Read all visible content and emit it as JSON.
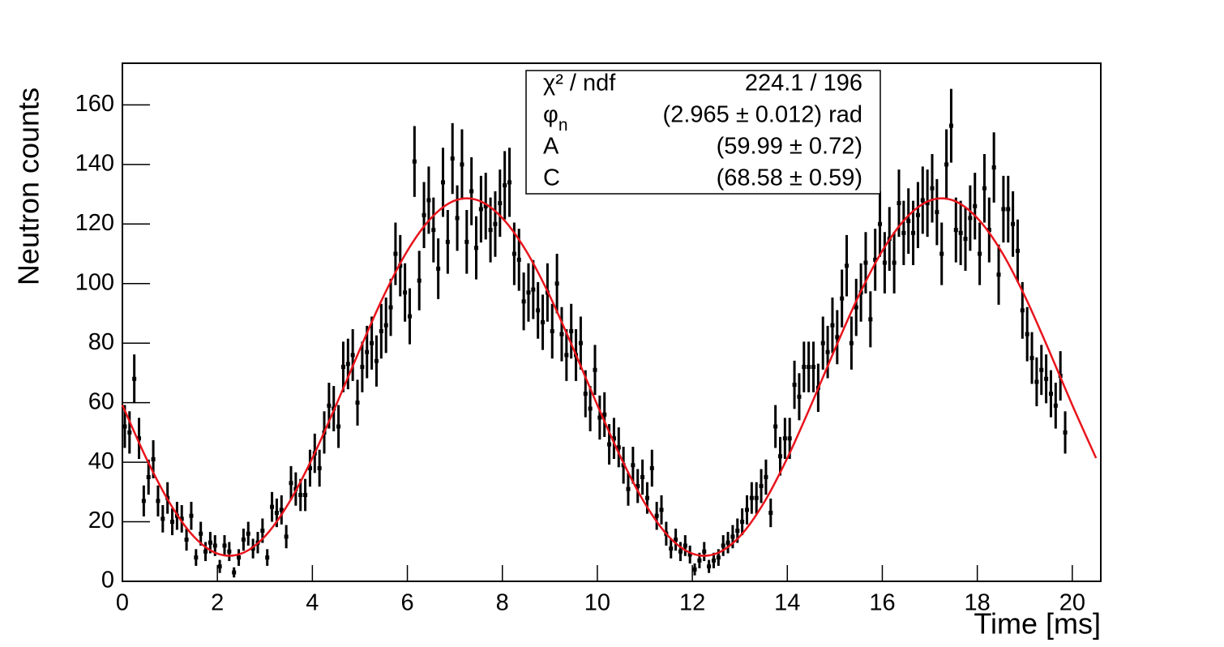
{
  "chart_data": {
    "type": "scatter",
    "xlabel": "Time [ms]",
    "ylabel": "Neutron counts",
    "xlim": [
      0,
      20.6
    ],
    "ylim": [
      0,
      174
    ],
    "xticks": [
      0,
      2,
      4,
      6,
      8,
      10,
      12,
      14,
      16,
      18,
      20
    ],
    "yticks": [
      0,
      20,
      40,
      60,
      80,
      100,
      120,
      140,
      160
    ],
    "color": "#000000",
    "x": [
      0.05,
      0.15,
      0.25,
      0.35,
      0.45,
      0.55,
      0.65,
      0.75,
      0.85,
      0.95,
      1.05,
      1.15,
      1.25,
      1.35,
      1.45,
      1.55,
      1.65,
      1.75,
      1.85,
      1.95,
      2.05,
      2.15,
      2.25,
      2.35,
      2.45,
      2.55,
      2.65,
      2.75,
      2.85,
      2.95,
      3.05,
      3.15,
      3.25,
      3.35,
      3.45,
      3.55,
      3.65,
      3.75,
      3.85,
      3.95,
      4.05,
      4.15,
      4.25,
      4.35,
      4.45,
      4.55,
      4.65,
      4.75,
      4.85,
      4.95,
      5.05,
      5.15,
      5.25,
      5.35,
      5.45,
      5.55,
      5.65,
      5.75,
      5.85,
      5.95,
      6.05,
      6.15,
      6.25,
      6.35,
      6.45,
      6.55,
      6.65,
      6.75,
      6.85,
      6.95,
      7.05,
      7.15,
      7.25,
      7.35,
      7.45,
      7.55,
      7.65,
      7.75,
      7.85,
      7.95,
      8.05,
      8.15,
      8.25,
      8.35,
      8.45,
      8.55,
      8.65,
      8.75,
      8.85,
      8.95,
      9.05,
      9.15,
      9.25,
      9.35,
      9.45,
      9.55,
      9.65,
      9.75,
      9.85,
      9.95,
      10.05,
      10.15,
      10.25,
      10.35,
      10.45,
      10.55,
      10.65,
      10.75,
      10.85,
      10.95,
      11.05,
      11.15,
      11.25,
      11.35,
      11.45,
      11.55,
      11.65,
      11.75,
      11.85,
      11.95,
      12.05,
      12.15,
      12.25,
      12.35,
      12.45,
      12.55,
      12.65,
      12.75,
      12.85,
      12.95,
      13.05,
      13.15,
      13.25,
      13.35,
      13.45,
      13.55,
      13.65,
      13.75,
      13.85,
      13.95,
      14.05,
      14.15,
      14.25,
      14.35,
      14.45,
      14.55,
      14.65,
      14.75,
      14.85,
      14.95,
      15.05,
      15.15,
      15.25,
      15.35,
      15.45,
      15.55,
      15.65,
      15.75,
      15.85,
      15.95,
      16.05,
      16.15,
      16.25,
      16.35,
      16.45,
      16.55,
      16.65,
      16.75,
      16.85,
      16.95,
      17.05,
      17.15,
      17.25,
      17.35,
      17.45,
      17.55,
      17.65,
      17.75,
      17.85,
      17.95,
      18.05,
      18.15,
      18.25,
      18.35,
      18.45,
      18.55,
      18.65,
      18.75,
      18.85,
      18.95,
      19.05,
      19.15,
      19.25,
      19.35,
      19.45,
      19.55,
      19.65,
      19.75,
      19.85
    ],
    "values": [
      52,
      50,
      68,
      48,
      27,
      35,
      41,
      27,
      21,
      28,
      20,
      22,
      21,
      14,
      22,
      8,
      16,
      10,
      13,
      12,
      5,
      12,
      10,
      3,
      8,
      14,
      16,
      11,
      13,
      17,
      8,
      25,
      23,
      24,
      15,
      33,
      31,
      29,
      29,
      38,
      43,
      38,
      50,
      59,
      58,
      52,
      72,
      73,
      76,
      60,
      72,
      77,
      80,
      74,
      84,
      86,
      92,
      110,
      106,
      97,
      89,
      141,
      101,
      123,
      128,
      118,
      105,
      134,
      114,
      142,
      122,
      140,
      114,
      131,
      112,
      125,
      126,
      118,
      120,
      127,
      133,
      134,
      110,
      108,
      94,
      97,
      98,
      91,
      87,
      97,
      84,
      100,
      83,
      76,
      84,
      76,
      80,
      63,
      58,
      71,
      55,
      56,
      46,
      48,
      45,
      39,
      31,
      39,
      32,
      35,
      28,
      38,
      22,
      24,
      16,
      11,
      14,
      10,
      12,
      9,
      4,
      7,
      10,
      5,
      7,
      8,
      12,
      13,
      15,
      17,
      20,
      24,
      28,
      28,
      32,
      35,
      23,
      52,
      42,
      48,
      48,
      66,
      62,
      72,
      72,
      72,
      65,
      80,
      77,
      86,
      82,
      95,
      106,
      80,
      92,
      97,
      107,
      88,
      108,
      120,
      107,
      115,
      107,
      127,
      117,
      121,
      117,
      123,
      128,
      127,
      132,
      124,
      110,
      140,
      153,
      118,
      117,
      115,
      122,
      126,
      110,
      132,
      118,
      139,
      103,
      125,
      125,
      120,
      111,
      91,
      83,
      75,
      67,
      71,
      68,
      63,
      59,
      69,
      50
    ],
    "errors": [
      7.2,
      7.1,
      8.2,
      6.9,
      5.2,
      5.9,
      6.4,
      5.2,
      4.6,
      5.3,
      4.5,
      4.7,
      4.6,
      3.7,
      4.7,
      2.8,
      4,
      3.2,
      3.6,
      3.5,
      2.2,
      3.5,
      3.2,
      1.7,
      2.8,
      3.7,
      4,
      3.3,
      3.6,
      4.1,
      2.8,
      5,
      4.8,
      4.9,
      3.9,
      5.7,
      5.6,
      5.4,
      5.4,
      6.2,
      6.6,
      6.2,
      7.1,
      7.7,
      7.6,
      7.2,
      8.5,
      8.5,
      8.7,
      7.7,
      8.5,
      8.8,
      8.9,
      8.6,
      9.2,
      9.3,
      9.6,
      10.5,
      10.3,
      9.8,
      9.4,
      11.9,
      10,
      11.1,
      11.3,
      10.9,
      10.2,
      11.6,
      10.7,
      11.9,
      11,
      11.8,
      10.7,
      11.4,
      10.6,
      11.2,
      11.2,
      10.9,
      11,
      11.3,
      11.5,
      11.6,
      10.5,
      10.4,
      9.7,
      9.8,
      9.9,
      9.5,
      9.3,
      9.8,
      9.2,
      10,
      9.1,
      8.7,
      9.2,
      8.7,
      8.9,
      7.9,
      7.6,
      8.4,
      7.4,
      7.5,
      6.8,
      6.9,
      6.7,
      6.2,
      5.6,
      6.2,
      5.7,
      5.9,
      5.3,
      6.2,
      4.7,
      4.9,
      4,
      3.3,
      3.7,
      3.2,
      3.5,
      3,
      2,
      2.6,
      3.2,
      2.2,
      2.6,
      2.8,
      3.5,
      3.6,
      3.9,
      4.1,
      4.5,
      4.9,
      5.3,
      5.3,
      5.7,
      5.9,
      4.8,
      7.2,
      6.5,
      6.9,
      6.9,
      8.1,
      7.9,
      8.5,
      8.5,
      8.5,
      8.1,
      8.9,
      8.8,
      9.3,
      9.1,
      9.7,
      10.3,
      8.9,
      9.6,
      9.8,
      10.3,
      9.4,
      10.4,
      11,
      10.3,
      10.7,
      10.3,
      11.3,
      10.8,
      11,
      10.8,
      11.1,
      11.3,
      11.3,
      11.5,
      11.1,
      10.5,
      11.8,
      12.4,
      10.9,
      10.8,
      10.7,
      11,
      11.2,
      10.5,
      11.5,
      10.9,
      11.8,
      10.1,
      11.2,
      11.2,
      11,
      10.5,
      9.5,
      9.1,
      8.7,
      8.2,
      8.4,
      8.2,
      7.9,
      7.7,
      8.3,
      7.1
    ],
    "fit": {
      "color": "#e8141c",
      "x": [
        0,
        0.5,
        1,
        1.5,
        2,
        2.5,
        3,
        3.5,
        4,
        4.5,
        5,
        5.5,
        6,
        6.5,
        7,
        7.5,
        8,
        8.5,
        9,
        9.5,
        10,
        10.5,
        11,
        11.5,
        12,
        12.5,
        13,
        13.5,
        14,
        14.5,
        15,
        15.5,
        16,
        16.5,
        17,
        17.5,
        18,
        18.5,
        19,
        19.5,
        20,
        20.5
      ],
      "y": [
        59.2,
        41.4,
        26.2,
        15.1,
        9.3,
        9.3,
        15.1,
        26.2,
        41.4,
        59.2,
        77.9,
        95.8,
        111.0,
        122.0,
        127.9,
        127.9,
        122.0,
        111.0,
        95.8,
        77.9,
        59.2,
        41.4,
        26.2,
        15.1,
        9.3,
        9.3,
        15.1,
        26.2,
        41.4,
        59.2,
        77.9,
        95.8,
        111.0,
        122.0,
        127.9,
        127.9,
        122.0,
        111.0,
        95.8,
        77.9,
        59.2,
        41.4
      ]
    },
    "stats": {
      "rows": [
        {
          "name": "χ² / ndf",
          "value": "224.1 / 196"
        },
        {
          "name": "φ",
          "sub": "n",
          "value": "(2.965 ± 0.012) rad"
        },
        {
          "name": "A",
          "value": "(59.99 ± 0.72)"
        },
        {
          "name": "C",
          "value": "(68.58 ± 0.59)"
        }
      ]
    }
  }
}
